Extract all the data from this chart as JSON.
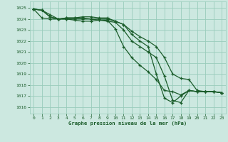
{
  "bg_color": "#cce8e0",
  "grid_color": "#99ccbb",
  "line_color": "#1a5c2a",
  "xlabel": "Graphe pression niveau de la mer (hPa)",
  "xlabel_color": "#1a5c2a",
  "ylabel_ticks": [
    1016,
    1017,
    1018,
    1019,
    1020,
    1021,
    1022,
    1023,
    1024,
    1025
  ],
  "xlim": [
    -0.5,
    23.5
  ],
  "ylim": [
    1015.4,
    1025.6
  ],
  "series": [
    [
      1024.9,
      1024.8,
      1024.2,
      1024.0,
      1024.1,
      1024.1,
      1024.1,
      1024.0,
      1024.0,
      1024.0,
      1023.8,
      1023.5,
      1022.6,
      1022.0,
      1021.5,
      1019.0,
      1016.8,
      1016.4,
      1017.0,
      1017.5,
      1017.4,
      1017.4,
      1017.4,
      1017.3
    ],
    [
      1024.9,
      1024.8,
      1024.2,
      1024.0,
      1024.0,
      1023.9,
      1023.8,
      1023.8,
      1023.9,
      1023.9,
      1023.1,
      1021.5,
      1020.5,
      1019.8,
      1019.2,
      1018.5,
      1017.5,
      1017.4,
      1017.1,
      1017.5,
      1017.4,
      1017.4,
      1017.4,
      1017.3
    ],
    [
      1024.9,
      1024.1,
      1024.0,
      1024.0,
      1024.0,
      1024.0,
      1024.0,
      1024.0,
      1023.9,
      1023.8,
      1023.7,
      1023.0,
      1022.0,
      1021.5,
      1021.0,
      1020.5,
      1018.8,
      1016.6,
      1016.4,
      1017.5,
      1017.4,
      1017.4,
      1017.4,
      1017.3
    ],
    [
      1024.9,
      1024.8,
      1024.4,
      1024.0,
      1024.1,
      1024.1,
      1024.2,
      1024.2,
      1024.1,
      1024.1,
      1023.8,
      1023.5,
      1022.9,
      1022.4,
      1022.0,
      1021.5,
      1020.5,
      1019.0,
      1018.6,
      1018.5,
      1017.5,
      1017.4,
      1017.4,
      1017.3
    ]
  ]
}
